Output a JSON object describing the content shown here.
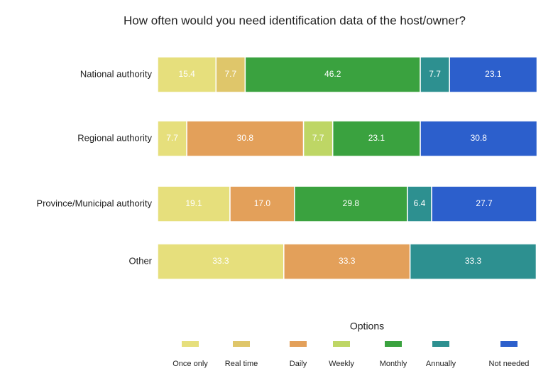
{
  "chart_data": {
    "type": "stacked_bar_horizontal",
    "title": "How often would you need identification data of the host/owner?",
    "categories": [
      "National authority",
      "Regional authority",
      "Province/Municipal authority",
      "Other"
    ],
    "xlim": [
      0,
      100
    ],
    "legend_title": "Options",
    "legend_position": "bottom",
    "series": [
      {
        "name": "Once only",
        "color": "#e6df7c",
        "values": [
          15.4,
          7.7,
          19.1,
          33.3
        ],
        "value_labels": [
          "15.4",
          "7.7",
          "19.1",
          "33.3"
        ]
      },
      {
        "name": "Real time",
        "color": "#dfc66a",
        "values": [
          7.7,
          null,
          null,
          null
        ],
        "value_labels": [
          "7.7",
          null,
          null,
          null
        ]
      },
      {
        "name": "Daily",
        "color": "#e3a05a",
        "values": [
          null,
          30.8,
          17,
          33.3
        ],
        "value_labels": [
          null,
          "30.8",
          "17.0",
          "33.3"
        ]
      },
      {
        "name": "Weekly",
        "color": "#bed665",
        "values": [
          null,
          7.7,
          null,
          null
        ],
        "value_labels": [
          null,
          "7.7",
          null,
          null
        ]
      },
      {
        "name": "Monthly",
        "color": "#3aa23f",
        "values": [
          46.2,
          23.1,
          29.8,
          null
        ],
        "value_labels": [
          "46.2",
          "23.1",
          "29.8",
          null
        ]
      },
      {
        "name": "Annually",
        "color": "#2d9090",
        "values": [
          7.7,
          null,
          6.4,
          33.3
        ],
        "value_labels": [
          "7.7",
          null,
          "6.4",
          "33.3"
        ]
      },
      {
        "name": "Not needed",
        "color": "#2c5fcc",
        "values": [
          23.1,
          30.8,
          27.7,
          null
        ],
        "value_labels": [
          "23.1",
          "30.8",
          "27.7",
          null
        ]
      }
    ]
  }
}
